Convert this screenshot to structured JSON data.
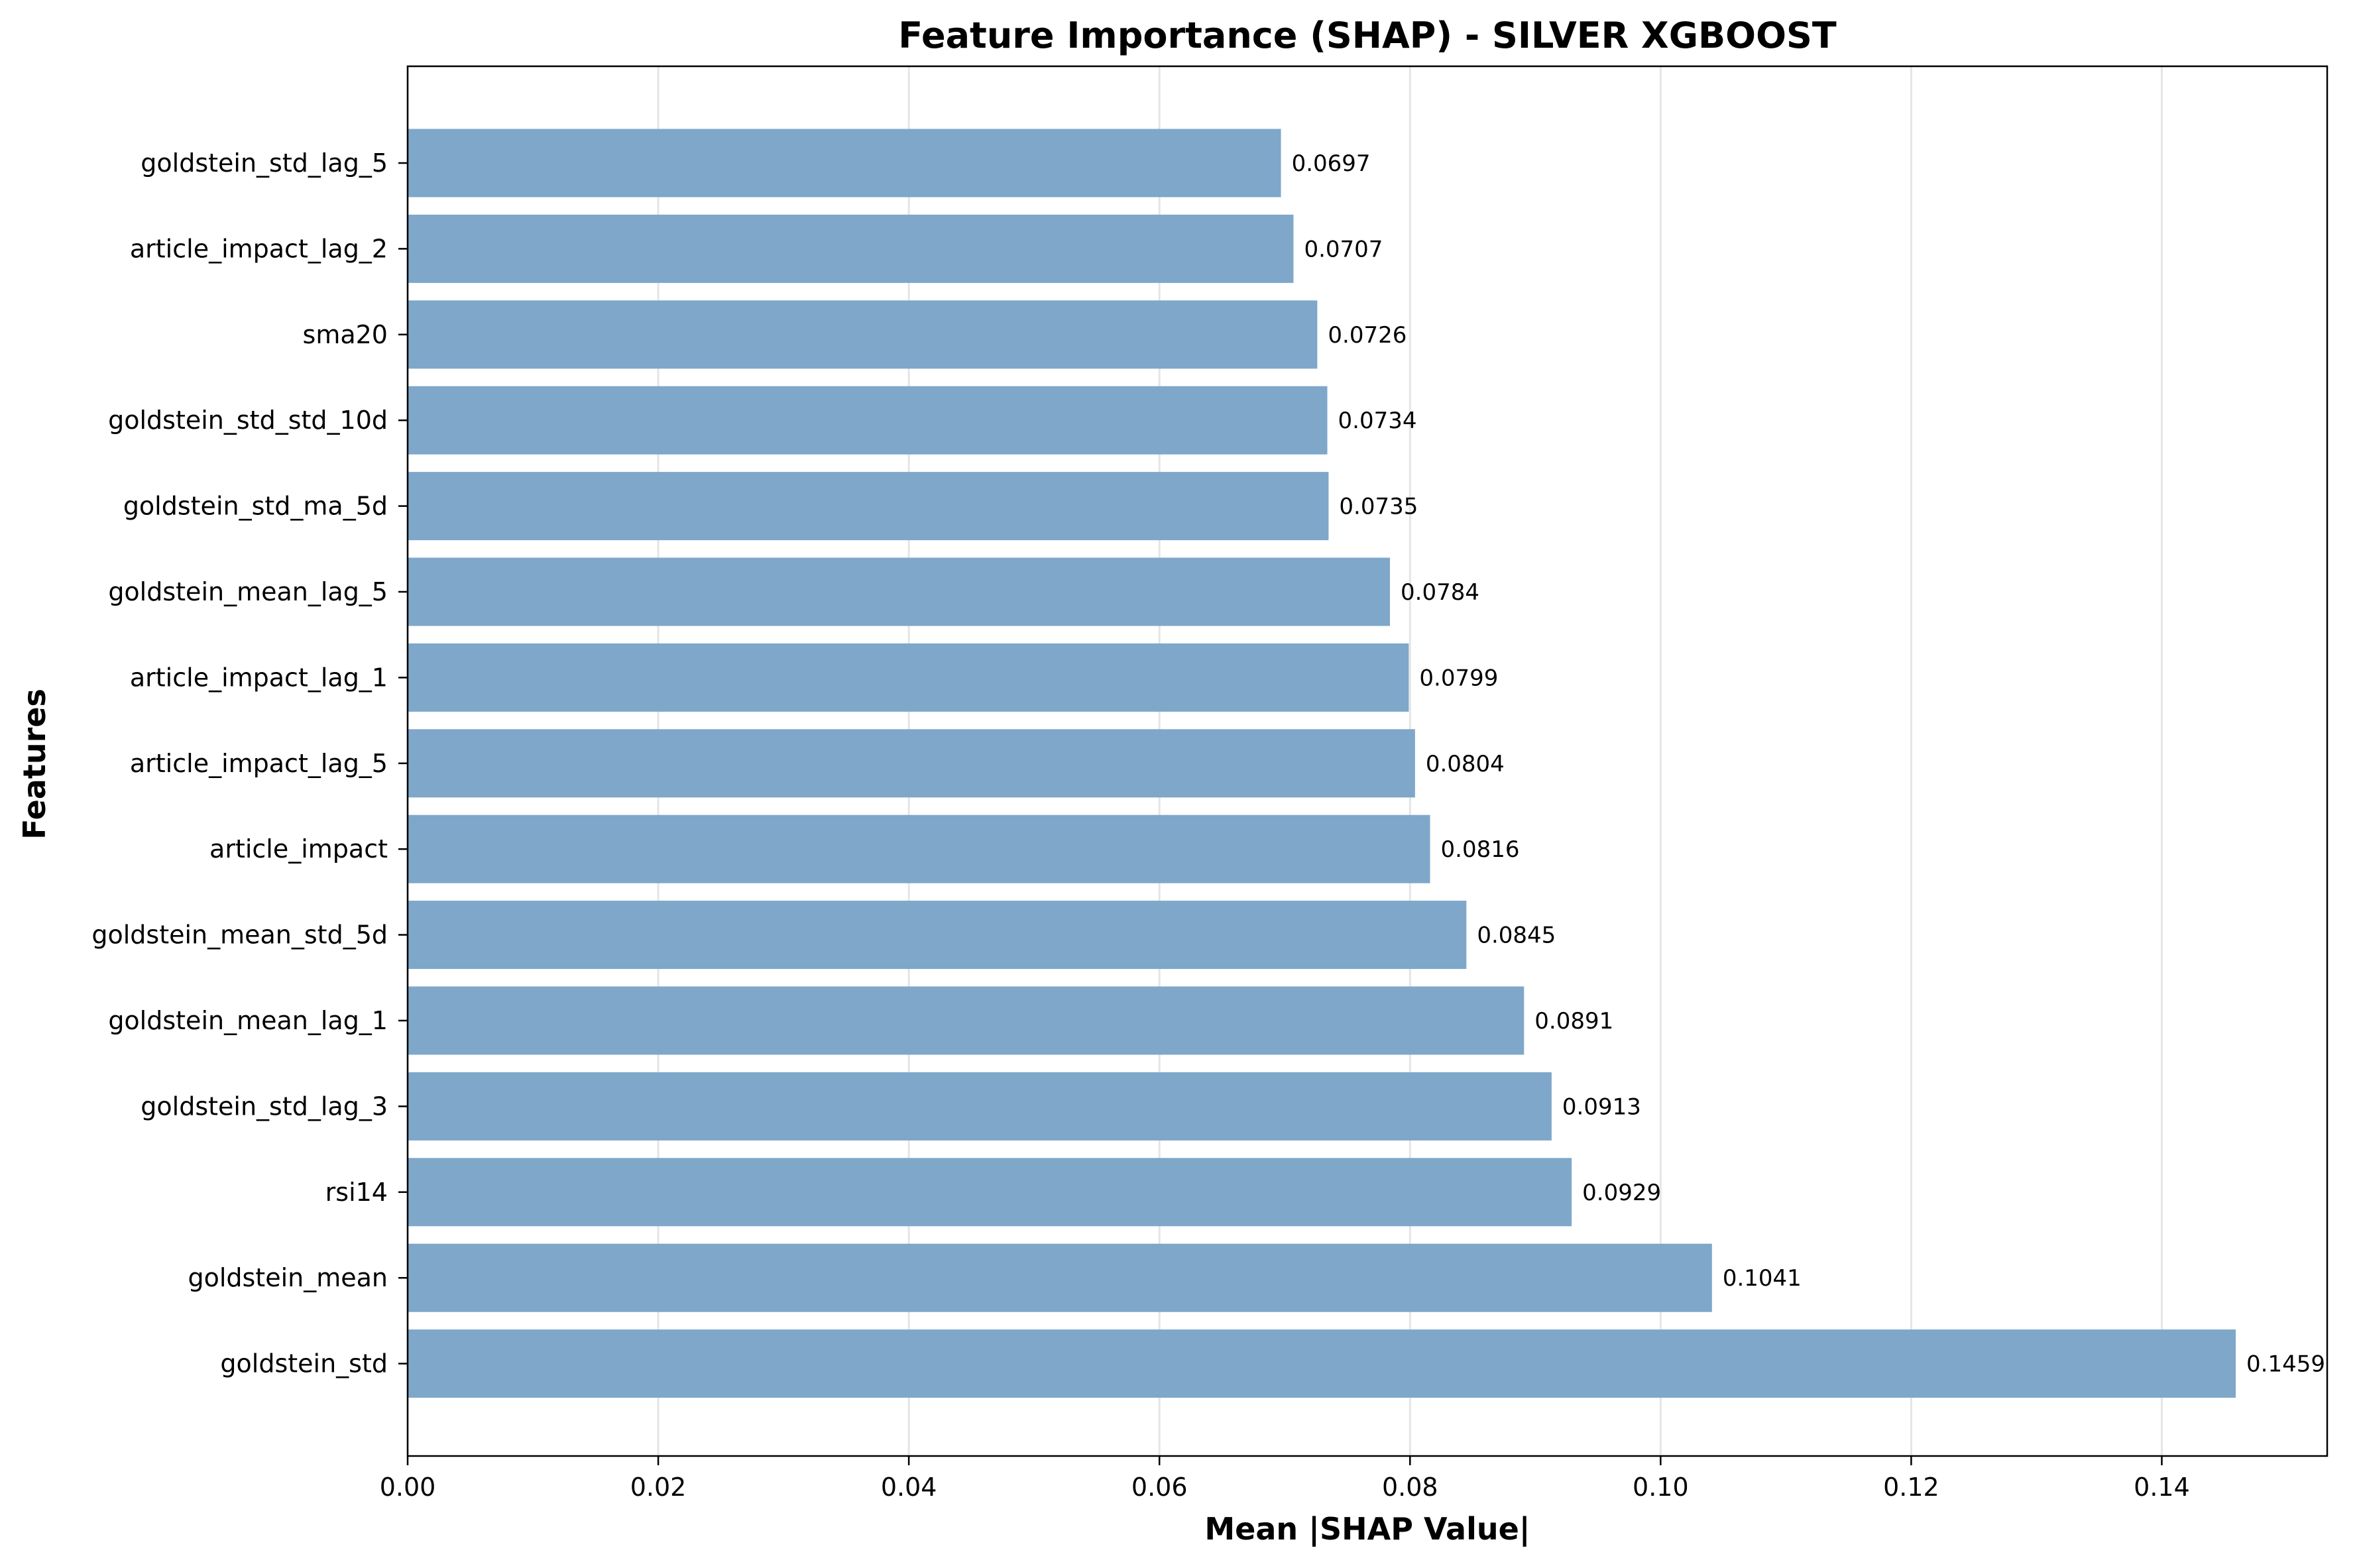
{
  "chart_data": {
    "type": "bar",
    "orientation": "horizontal",
    "title": "Feature Importance (SHAP) - SILVER XGBOOST",
    "xlabel": "Mean |SHAP Value|",
    "ylabel": "Features",
    "xlim": [
      0,
      0.1532
    ],
    "xticks": [
      0.0,
      0.02,
      0.04,
      0.06,
      0.08,
      0.1,
      0.12,
      0.14
    ],
    "xtick_labels": [
      "0.00",
      "0.02",
      "0.04",
      "0.06",
      "0.08",
      "0.10",
      "0.12",
      "0.14"
    ],
    "grid": "x-axis only",
    "bar_color": "#7ea7ca",
    "categories": [
      "goldstein_std_lag_5",
      "article_impact_lag_2",
      "sma20",
      "goldstein_std_std_10d",
      "goldstein_std_ma_5d",
      "goldstein_mean_lag_5",
      "article_impact_lag_1",
      "article_impact_lag_5",
      "article_impact",
      "goldstein_mean_std_5d",
      "goldstein_mean_lag_1",
      "goldstein_std_lag_3",
      "rsi14",
      "goldstein_mean",
      "goldstein_std"
    ],
    "values": [
      0.0697,
      0.0707,
      0.0726,
      0.0734,
      0.0735,
      0.0784,
      0.0799,
      0.0804,
      0.0816,
      0.0845,
      0.0891,
      0.0913,
      0.0929,
      0.1041,
      0.1459
    ],
    "value_labels": [
      "0.0697",
      "0.0707",
      "0.0726",
      "0.0734",
      "0.0735",
      "0.0784",
      "0.0799",
      "0.0804",
      "0.0816",
      "0.0845",
      "0.0891",
      "0.0913",
      "0.0929",
      "0.1041",
      "0.1459"
    ]
  }
}
